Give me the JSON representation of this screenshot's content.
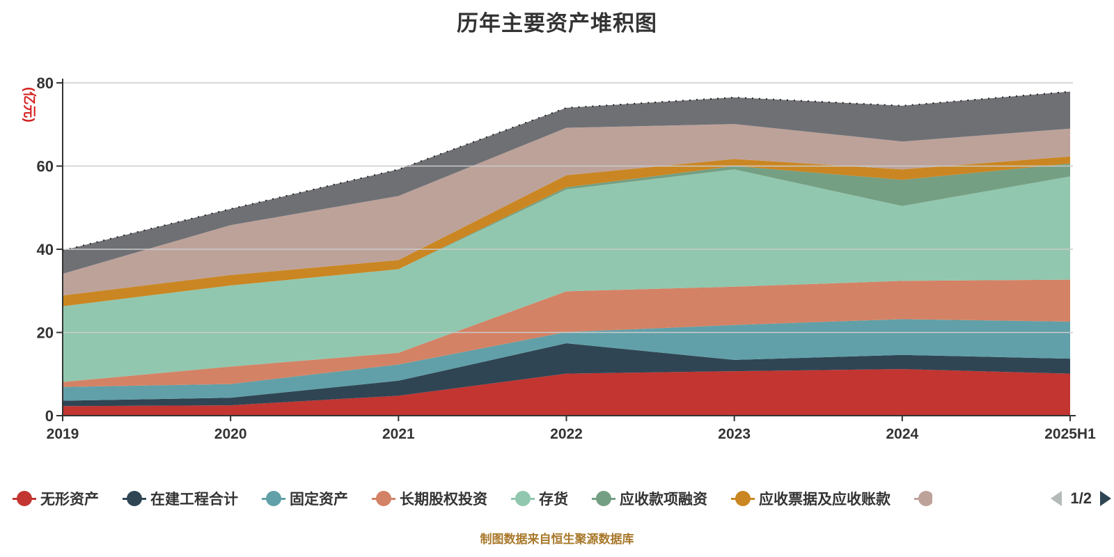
{
  "title": {
    "text": "历年主要资产堆积图"
  },
  "caption": {
    "text": "制图数据来自恒生聚源数据库",
    "color": "#a8782a"
  },
  "y_axis": {
    "unit_label": "(亿元)",
    "unit_color": "#d42222",
    "ticks": [
      0,
      20,
      40,
      60,
      80
    ],
    "max": 80,
    "label_color": "#333333",
    "axis_color": "#333333",
    "grid_color": "#cccccc"
  },
  "x_axis": {
    "categories": [
      "2019",
      "2020",
      "2021",
      "2022",
      "2023",
      "2024",
      "2025H1"
    ],
    "label_color": "#333333"
  },
  "legend": {
    "items": [
      {
        "label": "无形资产",
        "color": "#c23531",
        "truncated": false
      },
      {
        "label": "在建工程合计",
        "color": "#2f4554",
        "truncated": false
      },
      {
        "label": "固定资产",
        "color": "#61a0a8",
        "truncated": false
      },
      {
        "label": "长期股权投资",
        "color": "#d48265",
        "truncated": false
      },
      {
        "label": "存货",
        "color": "#91c7ae",
        "truncated": false
      },
      {
        "label": "应收款项融资",
        "color": "#749f83",
        "truncated": false
      },
      {
        "label": "应收票据及应收账款",
        "color": "#ca8622",
        "truncated": false
      },
      {
        "label": "",
        "color": "#bda29a",
        "truncated": true
      }
    ],
    "pager": {
      "text": "1/2",
      "prev_color": "#b4bab8",
      "next_color": "#2f4554"
    }
  },
  "chart_data": {
    "type": "area",
    "stacked": true,
    "title": "历年主要资产堆积图",
    "xlabel": "",
    "ylabel": "(亿元)",
    "ylim": [
      0,
      80
    ],
    "grid": true,
    "legend_position": "bottom",
    "x": [
      "2019",
      "2020",
      "2021",
      "2022",
      "2023",
      "2024",
      "2025H1"
    ],
    "series": [
      {
        "name": "无形资产",
        "color": "#c23531",
        "values": [
          2.3,
          2.5,
          4.8,
          10.1,
          10.7,
          11.2,
          10.1
        ]
      },
      {
        "name": "在建工程合计",
        "color": "#2f4554",
        "values": [
          1.3,
          1.8,
          3.6,
          7.3,
          2.7,
          3.4,
          3.6
        ]
      },
      {
        "name": "固定资产",
        "color": "#61a0a8",
        "values": [
          3.3,
          3.3,
          3.9,
          2.7,
          8.4,
          8.6,
          8.9
        ]
      },
      {
        "name": "长期股权投资",
        "color": "#d48265",
        "values": [
          1.2,
          4.2,
          2.8,
          9.8,
          9.2,
          9.2,
          10.1
        ]
      },
      {
        "name": "存货",
        "color": "#91c7ae",
        "values": [
          18.2,
          19.5,
          20.1,
          24.5,
          28.2,
          18.0,
          24.8
        ]
      },
      {
        "name": "应收款项融资",
        "color": "#749f83",
        "values": [
          0.0,
          0.0,
          0.0,
          0.5,
          0.8,
          6.3,
          3.1
        ]
      },
      {
        "name": "应收票据及应收账款",
        "color": "#ca8622",
        "values": [
          2.6,
          2.5,
          2.2,
          2.9,
          1.7,
          2.5,
          1.7
        ]
      },
      {
        "name": "",
        "color": "#bda29a",
        "values": [
          5.2,
          12.0,
          15.4,
          11.4,
          8.4,
          6.7,
          6.7
        ]
      },
      {
        "name": "",
        "color": "#6e7074",
        "values": [
          5.6,
          3.9,
          6.4,
          4.8,
          6.4,
          8.6,
          8.9
        ],
        "top_line": "dotted-dark"
      }
    ]
  }
}
